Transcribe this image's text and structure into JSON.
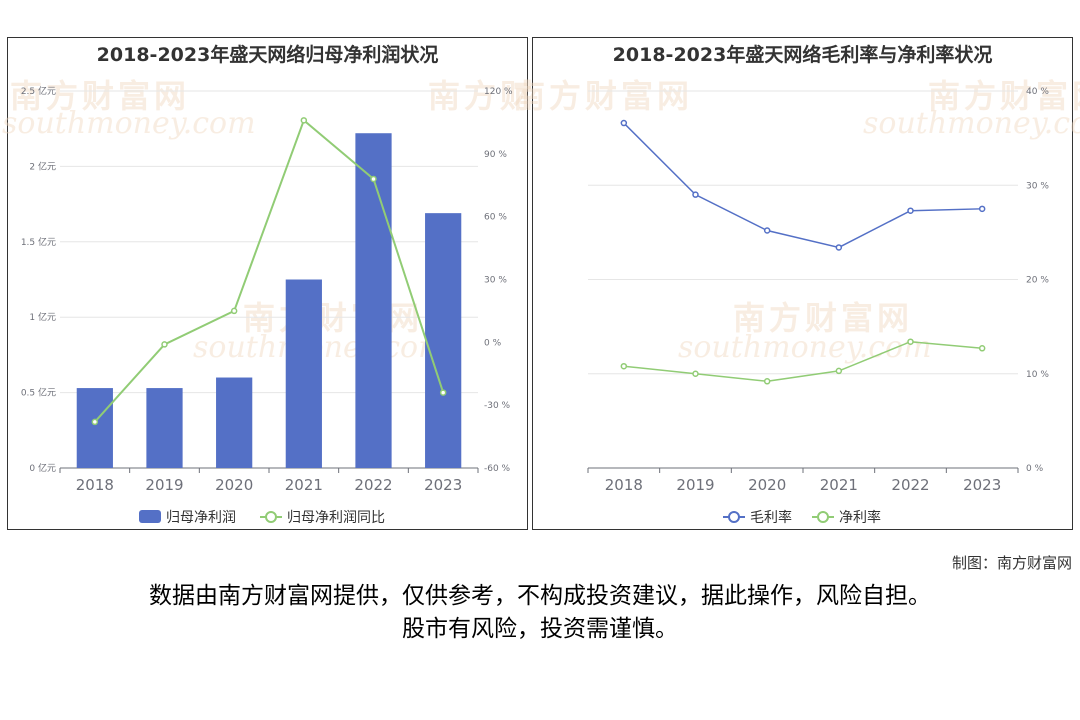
{
  "watermark": {
    "cn": "南方财富网",
    "en": "southmoney.com"
  },
  "credit": "制图：南方财富网",
  "disclaimer": {
    "line1": "数据由南方财富网提供，仅供参考，不构成投资建议，据此操作，风险自担。",
    "line2": "股市有风险，投资需谨慎。"
  },
  "chart_data": [
    {
      "type": "bar",
      "title": "2018-2023年盛天网络归母净利润状况",
      "categories": [
        "2018",
        "2019",
        "2020",
        "2021",
        "2022",
        "2023"
      ],
      "series": [
        {
          "name": "归母净利润",
          "type": "bar",
          "axis": "left",
          "values": [
            0.53,
            0.53,
            0.6,
            1.25,
            2.22,
            1.69
          ]
        },
        {
          "name": "归母净利润同比",
          "type": "line",
          "axis": "right",
          "values": [
            -38,
            -1,
            15,
            106,
            78,
            -24
          ]
        }
      ],
      "y_left": {
        "min": 0,
        "max": 2.5,
        "ticks": [
          0,
          0.5,
          1,
          1.5,
          2,
          2.5
        ],
        "tick_labels": [
          "0 亿元",
          "0.5 亿元",
          "1 亿元",
          "1.5 亿元",
          "2 亿元",
          "2.5 亿元"
        ]
      },
      "y_right": {
        "min": -60,
        "max": 120,
        "ticks": [
          -60,
          -30,
          0,
          30,
          60,
          90,
          120
        ],
        "tick_labels": [
          "-60 %",
          "-30 %",
          "0 %",
          "30 %",
          "60 %",
          "90 %",
          "120 %"
        ]
      },
      "grid": true,
      "legend": "bottom",
      "colors": {
        "bar": "#5470c6",
        "line": "#91cc75"
      }
    },
    {
      "type": "line",
      "title": "2018-2023年盛天网络毛利率与净利率状况",
      "categories": [
        "2018",
        "2019",
        "2020",
        "2021",
        "2022",
        "2023"
      ],
      "series": [
        {
          "name": "毛利率",
          "values": [
            36.6,
            29.0,
            25.2,
            23.4,
            27.3,
            27.5
          ]
        },
        {
          "name": "净利率",
          "values": [
            10.8,
            10.0,
            9.2,
            10.3,
            13.4,
            12.7
          ]
        }
      ],
      "y_right": {
        "min": 0,
        "max": 40,
        "ticks": [
          0,
          10,
          20,
          30,
          40
        ],
        "tick_labels": [
          "0 %",
          "10 %",
          "20 %",
          "30 %",
          "40 %"
        ]
      },
      "grid": true,
      "legend": "bottom",
      "colors": {
        "line1": "#5470c6",
        "line2": "#91cc75"
      }
    }
  ]
}
